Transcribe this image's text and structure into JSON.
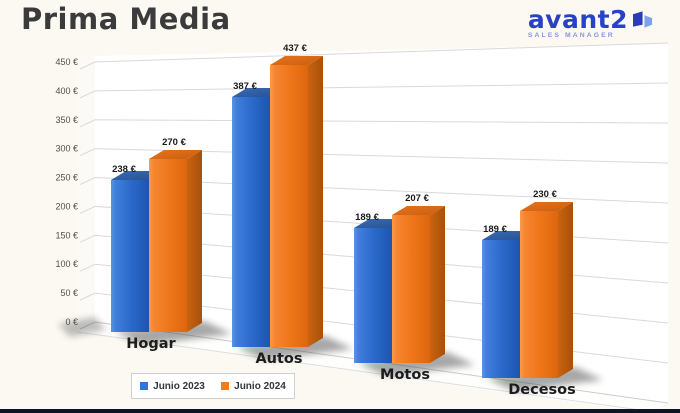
{
  "page": {
    "title": "Prima Media"
  },
  "brand": {
    "name": "avant2",
    "tagline": "SALES MANAGER"
  },
  "chart_data": {
    "type": "bar",
    "style": "3d-clustered-column",
    "title": "Prima Media",
    "categories": [
      "Hogar",
      "Autos",
      "Motos",
      "Decesos"
    ],
    "series": [
      {
        "name": "Junio 2023",
        "color": "#2e75d6",
        "values": [
          238,
          387,
          189,
          189
        ]
      },
      {
        "name": "Junio 2024",
        "color": "#f07c1e",
        "values": [
          270,
          437,
          207,
          230
        ]
      }
    ],
    "value_suffix": " €",
    "data_labels_shown": true,
    "ylim": [
      0,
      450
    ],
    "ytick_step": 50,
    "ytick_labels": [
      "0 €",
      "50 €",
      "100 €",
      "150 €",
      "200 €",
      "250 €",
      "300 €",
      "350 €",
      "400 €",
      "450 €"
    ],
    "legend_position": "bottom",
    "grid": true
  },
  "colors": {
    "background": "#fcf9f2",
    "plot_wall": "#ffffff",
    "gridline": "#d9d9d9",
    "title_text": "#3b3b3b",
    "axis_text": "#524e49",
    "category_text": "#1c1c1c",
    "value_label_text": "#1a1a1a",
    "brand_blue": "#2742c6",
    "brand_light_blue": "#8695dc",
    "footer_bar": "#0d1626"
  }
}
